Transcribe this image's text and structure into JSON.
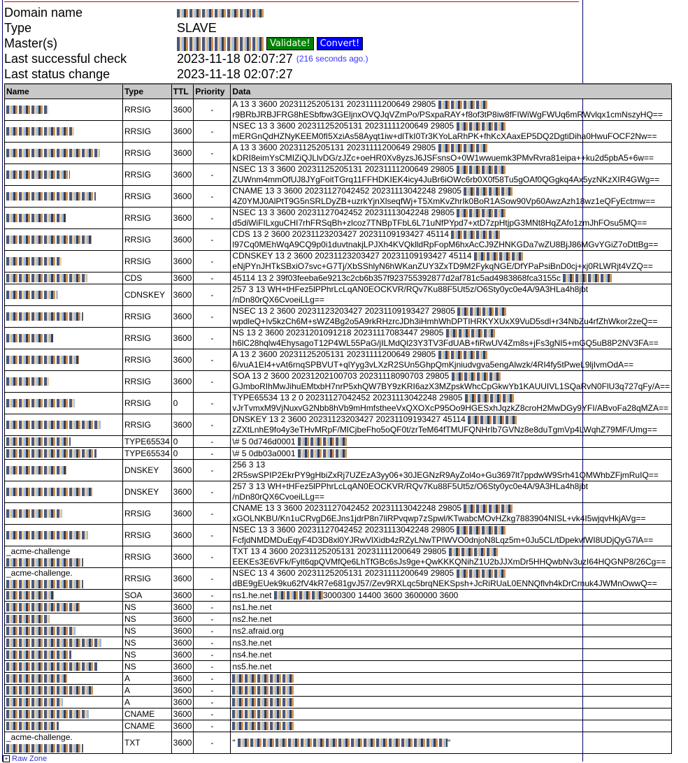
{
  "info": {
    "domain_label": "Domain name",
    "type_label": "Type",
    "type_value": "SLAVE",
    "masters_label": "Master(s)",
    "validate_label": "Validate!",
    "convert_label": "Convert!",
    "last_check_label": "Last successful check",
    "last_check_value": "2023-11-18 02:07:27",
    "last_check_ago": "(216 seconds ago.)",
    "last_change_label": "Last status change",
    "last_change_value": "2023-11-18 02:07:27"
  },
  "colors": {
    "validate": "#008000",
    "convert": "#0000ff",
    "header_bg": "#c8c8c8"
  },
  "table": {
    "headers": [
      "Name",
      "Type",
      "TTL",
      "Priority",
      "Data"
    ],
    "rows": [
      {
        "prefix": "",
        "type": "RRSIG",
        "ttl": "3600",
        "pri": "-",
        "d1": "A 13 3 3600 20231125205131 20231111200649 29805",
        "d2": "r9BRbJRBJFRG8hESbfbw3GEljnxOVQJqVZmPo/PSxpaRAY+f8of3tP8iw8fFIWiWgFWUq6mRWvlqx1cmNszyHQ=="
      },
      {
        "prefix": "",
        "type": "RRSIG",
        "ttl": "3600",
        "pri": "-",
        "d1": "NSEC 13 3 3600 20231125205131 20231111200649 29805",
        "d2": "mERGnQdHZNyKEEM0fI5XziAs58Ayqt1iw+dlTkI0Tr3KYoLaRhPK+fhKcXAaxEP5DQ2DgtiDiha0HwuFOCF2Nw=="
      },
      {
        "prefix": "",
        "type": "RRSIG",
        "ttl": "3600",
        "pri": "-",
        "d1": "A 13 3 3600 20231125205131 20231111200649 29805",
        "d2": "kDRI8eimYsCMIZiQJLlvDG/zJZc+oeHR0Xv8yzsJ6JSFsnsO+0W1wwuemk3PMvRvra81eipa++ku2d5pbA5+6w=="
      },
      {
        "prefix": "",
        "type": "RRSIG",
        "ttl": "3600",
        "pri": "-",
        "d1": "NSEC 13 3 3600 20231125205131 20231111200649 29805",
        "d2": "ZUWnm4mmOfUJ8JYgFoitTGrq11FFHDKIEK4icy4JuBr6iOWc6rb0X0f58Tu5gOAf0QGgkq4Ax5yzNKzXIR4GWg=="
      },
      {
        "prefix": "",
        "type": "RRSIG",
        "ttl": "3600",
        "pri": "-",
        "d1": "CNAME 13 3 3600 20231127042452 20231113042248 29805",
        "d2": "4Z0YMJ0AlPtT9G5nSRLDyZB+uzrkYjnXlseqfWj+T5XmKvZhrIk0BoR1ASow90Vp60AwzAzh18wz1eQFyEctmw=="
      },
      {
        "prefix": "",
        "type": "RRSIG",
        "ttl": "3600",
        "pri": "-",
        "d1": "NSEC 13 3 3600 20231127042452 20231113042248 29805",
        "d2": "d5diWiFILxguCHI7rhFRSqBh+zlcoz7TNBpTFbL6L71uNfPYpd7+xtD7zpHtjpG3MNt8HqZAfo1zmJhFOsu5MQ=="
      },
      {
        "prefix": "",
        "type": "RRSIG",
        "ttl": "3600",
        "pri": "-",
        "d1": "CDS 13 2 3600 20231123203427 20231109193427 45114",
        "d2": "l97Cq0MEhWqA9CQ9p0i1duvtnakjLPJXh4KVQklldRpFopM6hxAcCJ9ZHNKGDa7wZU8BjJ86MGvYGiZ7oDttBg=="
      },
      {
        "prefix": "",
        "type": "RRSIG",
        "ttl": "3600",
        "pri": "-",
        "d1": "CDNSKEY 13 2 3600 20231123203427 20231109193427 45114",
        "d2": "eNjPYnJHTkSBxiO7svc+G7Tj/XbSShlyN6hWKanZUY3ZxTD9M2FykqNGE/DfYPaPsiBnD0cj+xj0RLWRjt4VZQ=="
      },
      {
        "prefix": "",
        "type": "CDS",
        "ttl": "3600",
        "pri": "-",
        "d1": "45114 13 2 39f03feeba6e9213c2cb6b357f923755392877d2af781c5ad4983868fca3155c",
        "d2": ""
      },
      {
        "prefix": "",
        "type": "CDNSKEY",
        "ttl": "3600",
        "pri": "-",
        "d1": "257 3 13 WH+tHFez5lPPhrLcLqAN0EOCKVR/RQv7Ku88F5Ut5z/O6Sty0yc0e4A/9A3HLa4h8jbt",
        "d2": "/nDn80rQX6CvoeiLLg==",
        "noblur": true
      },
      {
        "prefix": "",
        "type": "RRSIG",
        "ttl": "3600",
        "pri": "-",
        "d1": "NSEC 13 2 3600 20231123203427 20231109193427 29805",
        "d2": "wpdleQ+Iv5kzCh6M+sWZ4Bg2o5A9rkRHzrcJDh3iHmhWhDPTIHRKYXUxX9VuD5sdl+r34NbZu4rfZhWkor2zeQ=="
      },
      {
        "prefix": "",
        "type": "RRSIG",
        "ttl": "3600",
        "pri": "-",
        "d1": "NS 13 2 3600 20231201091218 20231117083447 29805",
        "d2": "h6lC28hqlw4EhysagoT12P4WL55PaG/jILMdQl23Y3TV3FdUAB+fiRwUV4Zm8s+jFs3gNI5+mGQ5uB8P2NV3FA=="
      },
      {
        "prefix": "",
        "type": "RRSIG",
        "ttl": "3600",
        "pri": "-",
        "d1": "A 13 2 3600 20231125205131 20231111200649 29805",
        "d2": "6/vuA1EI4+vAt6rnqSPBVUT+qlYyg3vLXzR2SUn5GhpQmKjniudvgva5engAlwzk/4RI4fy5tPweL9ljIvmOdA=="
      },
      {
        "prefix": "",
        "type": "RRSIG",
        "ttl": "3600",
        "pri": "-",
        "d1": "SOA 13 2 3600 20231202100703 20231118090703 29805",
        "d2": "GJmboRIhMwJihuEMtxbH7nrP5xhQW7BY9zKRI6azX3MZpskWhcCpGkwYb1KAUUIVL1SQaRvN0FlU3q727qFy/A=="
      },
      {
        "prefix": "",
        "type": "RRSIG",
        "ttl": "0",
        "pri": "-",
        "d1": "TYPE65534 13 2 0 20231127042452 20231113042248 29805",
        "d2": "vJrTvmxM9VjNuxvG2Nbb8hVb9mHmfstheeVxQXOXcP95Oo9HGESxhJqzkZ8croH2MwDGy9YFI/ABvoFa28qMZA=="
      },
      {
        "prefix": "",
        "type": "RRSIG",
        "ttl": "3600",
        "pri": "-",
        "d1": "DNSKEY 13 2 3600 20231123203427 20231109193427 45114",
        "d2": "zZXtLnhE9fo4y3eTHvMRpF/MICjbeFho5oQF0t/zrTeM64fTMUFQNHrIb7GVNz8e8duTgmVp4LWqhZ79MF/Umg=="
      },
      {
        "prefix": "",
        "type": "TYPE65534",
        "ttl": "0",
        "pri": "-",
        "d1": "\\# 5 0d746d0001",
        "d2": ""
      },
      {
        "prefix": "",
        "type": "TYPE65534",
        "ttl": "0",
        "pri": "-",
        "d1": "\\# 5 0db03a0001",
        "d2": ""
      },
      {
        "prefix": "",
        "type": "DNSKEY",
        "ttl": "3600",
        "pri": "-",
        "d1": "256 3 13",
        "d2": "2R5swSPIP2EkrPY9gHbiZxRj7UZEzA3yy06+30JEGNzR9AyZol4o+Gu3697lt7ppdwW9Srh41QMWhbZFjmRuIQ==",
        "noblur": true
      },
      {
        "prefix": "",
        "type": "DNSKEY",
        "ttl": "3600",
        "pri": "-",
        "d1": "257 3 13 WH+tHFez5lPPhrLcLqAN0EOCKVR/RQv7Ku88F5Ut5z/O6Sty0yc0e4A/9A3HLa4h8jbt",
        "d2": "/nDn80rQX6CvoeiLLg==",
        "noblur": true
      },
      {
        "prefix": "",
        "type": "RRSIG",
        "ttl": "3600",
        "pri": "-",
        "d1": "CNAME 13 3 3600 20231127042452 20231113042248 29805",
        "d2": "xGOLNKBU/Kn1uCRvgD6EJns1jdrP8n7liRPvqwp7zSpwl/KTwabcMOvHZkg7883904NISL+vk4I5wjqvHkjAVg=="
      },
      {
        "prefix": "",
        "type": "RRSIG",
        "ttl": "3600",
        "pri": "-",
        "d1": "NSEC 13 3 3600 20231127042452 20231113042248 29805",
        "d2": "FcfjdNMDMDuEqyF4D3D8xl0YJRwVlXidb4zRZyLNwTPIWVO0dnjoN8Lqz5m+0Ju5CL/tDpekvfWI8UDjQyG7lA=="
      },
      {
        "prefix": "_acme-challenge",
        "type": "RRSIG",
        "ttl": "3600",
        "pri": "-",
        "d1": "TXT 13 4 3600 20231125205131 20231111200649 29805",
        "d2": "EEKEs3E6VFk/Fylt6qpQVMfQe6LhTfGBc6sJs9ge+QwKKKQNihZ1U2bJJXmDr5HHQwbNv3uzI64HQGNP8/26Cg=="
      },
      {
        "prefix": "_acme-challenge.",
        "type": "RRSIG",
        "ttl": "3600",
        "pri": "-",
        "d1": "NSEC 13 4 3600 20231125205131 20231111200649 29805",
        "d2": "dBE9gEUek9ku62fV4kR7e681gvJ57/Zev9RXLqc5brqNEKSpsh+JcRiRUaL0ENNQflvh4kDrCrnuk4JWMnOwwQ=="
      },
      {
        "prefix": "",
        "type": "SOA",
        "ttl": "3600",
        "pri": "-",
        "d1": "ns1.he.net",
        "d1b": "3000300 14400 3600 3600000 3600",
        "d2": ""
      },
      {
        "prefix": "",
        "type": "NS",
        "ttl": "3600",
        "pri": "-",
        "d1": "ns1.he.net",
        "d2": "",
        "noblur": true
      },
      {
        "prefix": "",
        "type": "NS",
        "ttl": "3600",
        "pri": "-",
        "d1": "ns2.he.net",
        "d2": "",
        "noblur": true
      },
      {
        "prefix": "",
        "type": "NS",
        "ttl": "3600",
        "pri": "-",
        "d1": "ns2.afraid.org",
        "d2": "",
        "noblur": true
      },
      {
        "prefix": "",
        "type": "NS",
        "ttl": "3600",
        "pri": "-",
        "d1": "ns3.he.net",
        "d2": "",
        "noblur": true
      },
      {
        "prefix": "",
        "type": "NS",
        "ttl": "3600",
        "pri": "-",
        "d1": "ns4.he.net",
        "d2": "",
        "noblur": true
      },
      {
        "prefix": "",
        "type": "NS",
        "ttl": "3600",
        "pri": "-",
        "d1": "ns5.he.net",
        "d2": "",
        "noblur": true
      },
      {
        "prefix": "",
        "type": "A",
        "ttl": "3600",
        "pri": "-",
        "d1": "",
        "d2": ""
      },
      {
        "prefix": "",
        "type": "A",
        "ttl": "3600",
        "pri": "-",
        "d1": "",
        "d2": ""
      },
      {
        "prefix": "",
        "type": "A",
        "ttl": "3600",
        "pri": "-",
        "d1": "",
        "d2": ""
      },
      {
        "prefix": "",
        "type": "CNAME",
        "ttl": "3600",
        "pri": "-",
        "d1": "",
        "d2": ""
      },
      {
        "prefix": "",
        "type": "CNAME",
        "ttl": "3600",
        "pri": "-",
        "d1": "",
        "d2": ""
      },
      {
        "prefix": "_acme-challenge.",
        "type": "TXT",
        "ttl": "3600",
        "pri": "-",
        "d1": "\"",
        "d1b": "\"",
        "d2": ""
      }
    ]
  },
  "raw_zone": {
    "label": "Raw Zone",
    "toggle": "+"
  }
}
